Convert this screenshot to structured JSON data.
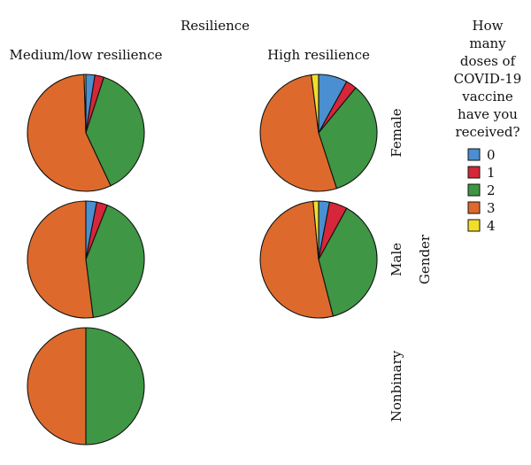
{
  "chart_data": {
    "type": "pie",
    "title": "Resilience",
    "column_labels": [
      "Medium/low resilience",
      "High resilience"
    ],
    "row_axis_label": "Gender",
    "row_labels": [
      "Female",
      "Male",
      "Nonbinary"
    ],
    "legend": {
      "title": "How many doses of COVID-19 vaccine have you received?",
      "title_lines": [
        "How",
        "many",
        "doses of",
        "COVID-19",
        "vaccine",
        "have you",
        "received?"
      ],
      "placement": "right",
      "entries": [
        {
          "label": "0",
          "color": "#4a8fd0"
        },
        {
          "label": "1",
          "color": "#d6263a"
        },
        {
          "label": "2",
          "color": "#3f9644"
        },
        {
          "label": "3",
          "color": "#dd6a2c"
        },
        {
          "label": "4",
          "color": "#f2de2a"
        }
      ]
    },
    "categories": [
      "0",
      "1",
      "2",
      "3",
      "4"
    ],
    "pies": [
      {
        "gender": "Female",
        "resilience": "Medium/low resilience",
        "values": [
          2.5,
          2.5,
          38,
          56.5,
          0.5
        ]
      },
      {
        "gender": "Female",
        "resilience": "High resilience",
        "values": [
          8,
          3,
          34,
          53,
          2
        ]
      },
      {
        "gender": "Male",
        "resilience": "Medium/low resilience",
        "values": [
          3,
          3,
          42,
          52,
          0
        ]
      },
      {
        "gender": "Male",
        "resilience": "High resilience",
        "values": [
          3,
          5,
          38,
          52.5,
          1.5
        ]
      },
      {
        "gender": "Nonbinary",
        "resilience": "Medium/low resilience",
        "values": [
          0,
          0,
          50,
          50,
          0
        ]
      }
    ]
  }
}
